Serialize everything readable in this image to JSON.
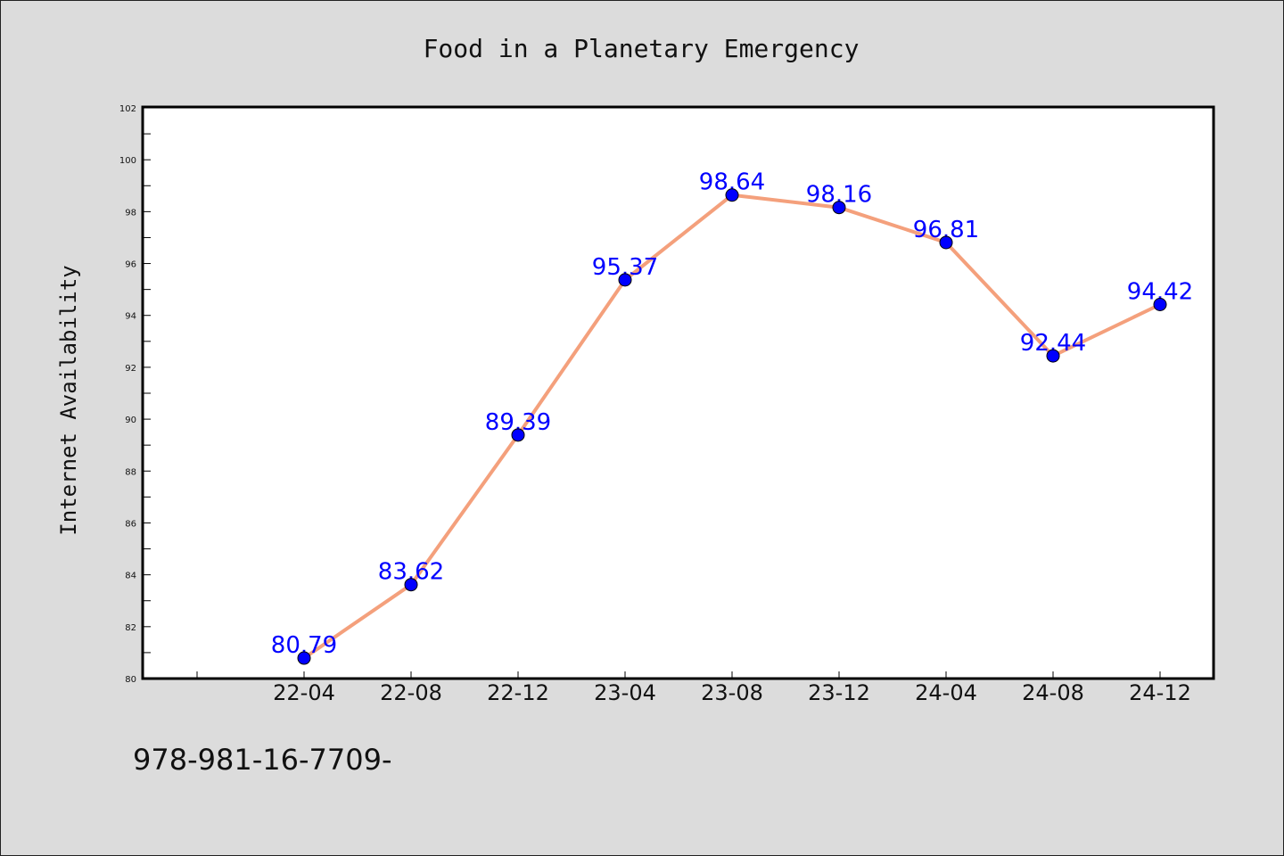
{
  "chart_data": {
    "type": "line",
    "title": "Food in a Planetary Emergency",
    "xlabel": "",
    "ylabel": "Internet Availability",
    "categories": [
      "22-04",
      "22-08",
      "22-12",
      "23-04",
      "23-08",
      "23-12",
      "24-04",
      "24-08",
      "24-12"
    ],
    "series": [
      {
        "values": [
          80.79,
          83.62,
          89.39,
          95.37,
          98.64,
          98.16,
          96.81,
          92.44,
          94.42
        ],
        "labels": [
          "80.79",
          "83.62",
          "89.39",
          "95.37",
          "98.64",
          "98.16",
          "96.81",
          "92.44",
          "94.42"
        ],
        "line_color": "#f4a07c",
        "marker_color": "#0000ff"
      }
    ],
    "ylim": [
      80,
      102
    ],
    "yticks": [
      80,
      82,
      84,
      86,
      88,
      90,
      92,
      94,
      96,
      98,
      100,
      102
    ],
    "grid": false,
    "legend": "none"
  },
  "footer": {
    "code": "978-981-16-7709-"
  }
}
